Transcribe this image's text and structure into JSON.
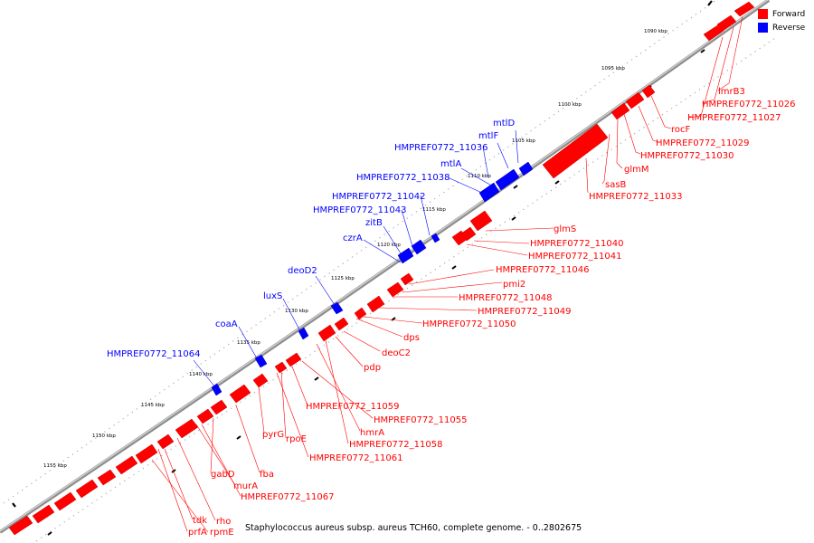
{
  "legend": [
    {
      "label": "Forward",
      "color": "#ff0000"
    },
    {
      "label": "Reverse",
      "color": "#0000ff"
    }
  ],
  "footer": "Staphylococcus aureus subsp. aureus TCH60, complete genome. - 0..2802675",
  "ticks": [
    "1090 kbp",
    "1095 kbp",
    "1100 kbp",
    "1105 kbp",
    "1110 kbp",
    "1115 kbp",
    "1120 kbp",
    "1125 kbp",
    "1130 kbp",
    "1135 kbp",
    "1140 kbp",
    "1145 kbp",
    "1150 kbp",
    "1155 kbp"
  ],
  "genes_forward": [
    "lmrB3",
    "HMPREF0772_11026",
    "HMPREF0772_11027",
    "rocF",
    "HMPREF0772_11029",
    "HMPREF0772_11030",
    "glmM",
    "sasB",
    "HMPREF0772_11033",
    "glmS",
    "HMPREF0772_11040",
    "HMPREF0772_11041",
    "HMPREF0772_11046",
    "pmi2",
    "HMPREF0772_11048",
    "HMPREF0772_11049",
    "HMPREF0772_11050",
    "dps",
    "deoC2",
    "pdp",
    "HMPREF0772_11059",
    "HMPREF0772_11055",
    "hmrA",
    "HMPREF0772_11058",
    "pyrG",
    "rpoE",
    "HMPREF0772_11061",
    "fba",
    "gabD",
    "murA",
    "HMPREF0772_11067",
    "rho",
    "tdk",
    "prfA",
    "rpmE"
  ],
  "genes_reverse": [
    "mtlD",
    "mtlF",
    "HMPREF0772_11036",
    "mtlA",
    "HMPREF0772_11038",
    "HMPREF0772_11042",
    "HMPREF0772_11043",
    "zitB",
    "czrA",
    "deoD2",
    "luxS",
    "coaA",
    "HMPREF0772_11064"
  ]
}
